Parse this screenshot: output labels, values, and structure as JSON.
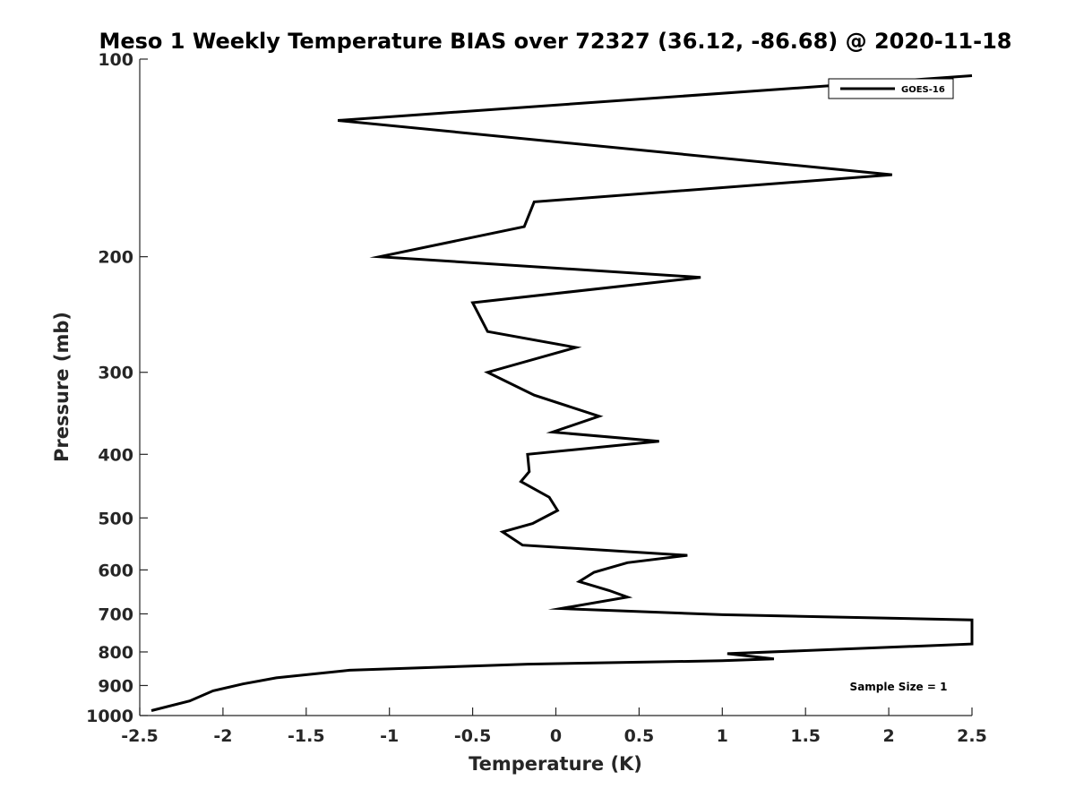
{
  "chart_data": {
    "type": "line",
    "title": "Meso 1 Weekly Temperature BIAS over 72327 (36.12, -86.68) @ 2020-11-18",
    "xlabel": "Temperature (K)",
    "ylabel": "Pressure (mb)",
    "xlim": [
      -2.5,
      2.5
    ],
    "ylim": [
      100,
      1000
    ],
    "y_scale": "log",
    "y_reversed": true,
    "grid": false,
    "x_ticks": [
      -2.5,
      -2,
      -1.5,
      -1,
      -0.5,
      0,
      0.5,
      1,
      1.5,
      2,
      2.5
    ],
    "x_tick_labels": [
      "-2.5",
      "-2",
      "-1.5",
      "-1",
      "-0.5",
      "0",
      "0.5",
      "1",
      "1.5",
      "2",
      "2.5"
    ],
    "y_ticks": [
      100,
      200,
      300,
      400,
      500,
      600,
      700,
      800,
      900,
      1000
    ],
    "y_tick_labels": [
      "100",
      "200",
      "300",
      "400",
      "500",
      "600",
      "700",
      "800",
      "900",
      "1000"
    ],
    "legend": {
      "placement": "top-right",
      "entries": [
        "GOES-16"
      ]
    },
    "annotation": "Sample Size = 1",
    "series": [
      {
        "name": "GOES-16",
        "color": "#000000",
        "points": [
          {
            "x": 2.5,
            "y": 106
          },
          {
            "x": -1.31,
            "y": 124
          },
          {
            "x": 2.02,
            "y": 150
          },
          {
            "x": -0.13,
            "y": 165
          },
          {
            "x": -0.19,
            "y": 180
          },
          {
            "x": -1.06,
            "y": 200
          },
          {
            "x": 0.87,
            "y": 215
          },
          {
            "x": -0.5,
            "y": 235
          },
          {
            "x": -0.41,
            "y": 260
          },
          {
            "x": 0.12,
            "y": 275
          },
          {
            "x": -0.41,
            "y": 300
          },
          {
            "x": -0.13,
            "y": 325
          },
          {
            "x": 0.26,
            "y": 350
          },
          {
            "x": -0.02,
            "y": 370
          },
          {
            "x": 0.62,
            "y": 382
          },
          {
            "x": -0.17,
            "y": 400
          },
          {
            "x": -0.16,
            "y": 425
          },
          {
            "x": -0.21,
            "y": 440
          },
          {
            "x": -0.04,
            "y": 465
          },
          {
            "x": 0.01,
            "y": 487
          },
          {
            "x": -0.14,
            "y": 510
          },
          {
            "x": -0.32,
            "y": 525
          },
          {
            "x": -0.2,
            "y": 550
          },
          {
            "x": 0.79,
            "y": 570
          },
          {
            "x": 0.43,
            "y": 585
          },
          {
            "x": 0.23,
            "y": 605
          },
          {
            "x": 0.14,
            "y": 625
          },
          {
            "x": 0.32,
            "y": 645
          },
          {
            "x": 0.43,
            "y": 660
          },
          {
            "x": 0.03,
            "y": 687
          },
          {
            "x": 1.0,
            "y": 702
          },
          {
            "x": 2.5,
            "y": 715
          },
          {
            "x": 2.5,
            "y": 778
          },
          {
            "x": 1.03,
            "y": 805
          },
          {
            "x": 1.31,
            "y": 820
          },
          {
            "x": 1.0,
            "y": 825
          },
          {
            "x": -0.17,
            "y": 835
          },
          {
            "x": -1.24,
            "y": 853
          },
          {
            "x": -1.68,
            "y": 876
          },
          {
            "x": -1.88,
            "y": 895
          },
          {
            "x": -2.06,
            "y": 917
          },
          {
            "x": -2.2,
            "y": 950
          },
          {
            "x": -2.43,
            "y": 983
          }
        ]
      }
    ]
  }
}
